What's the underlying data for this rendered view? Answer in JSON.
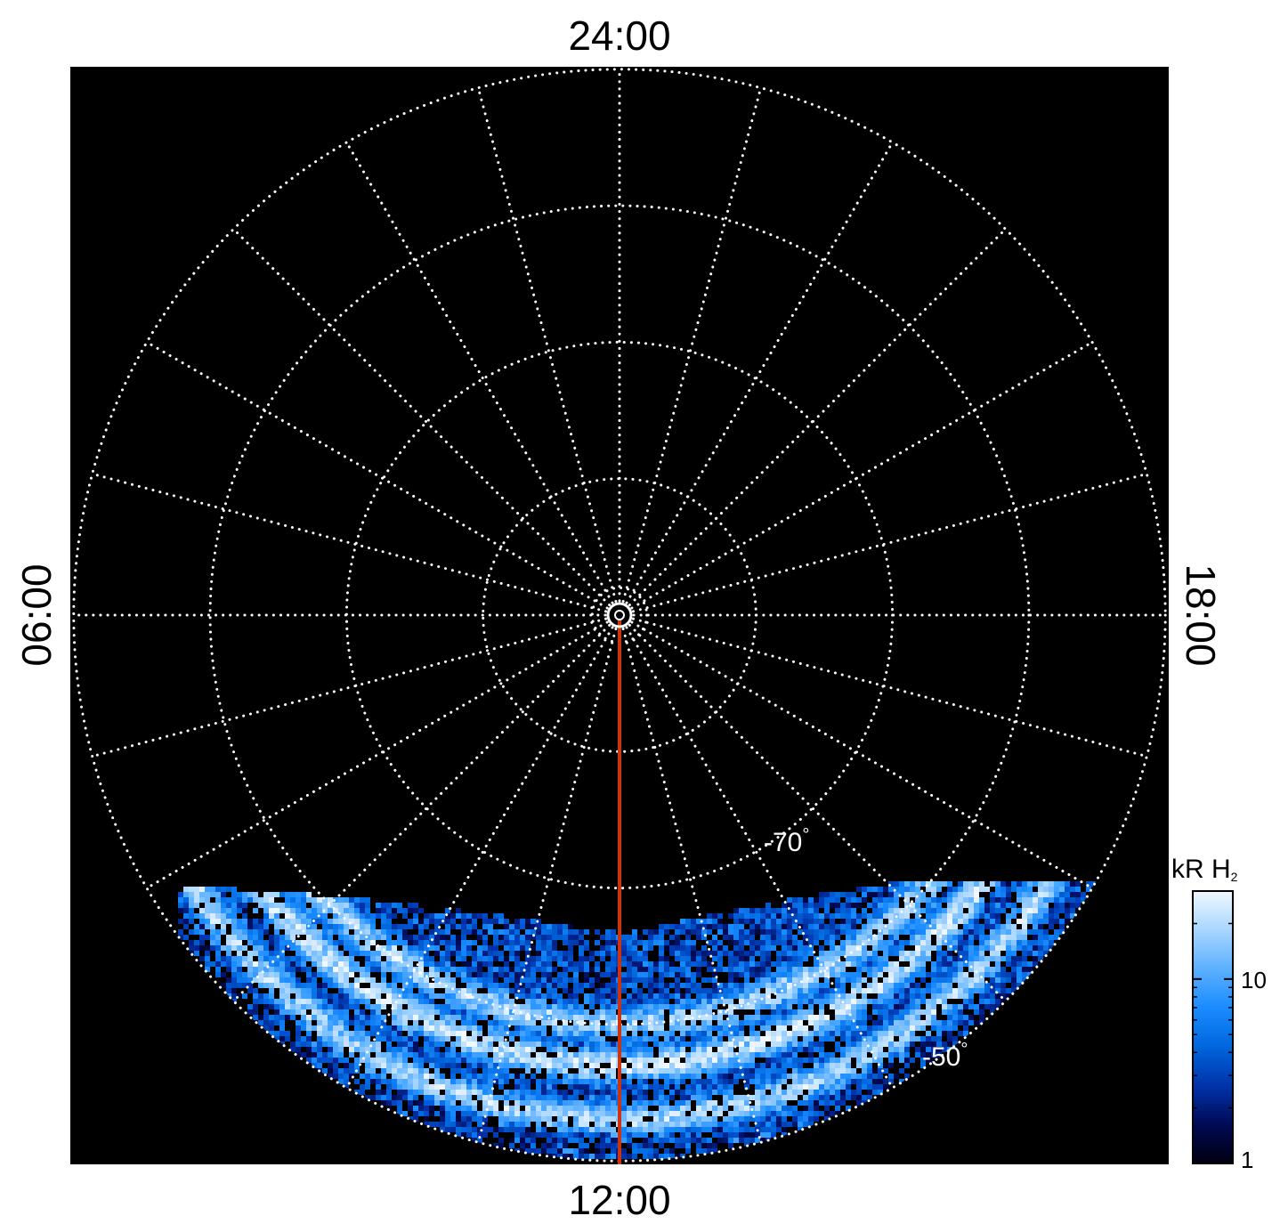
{
  "chart_data": {
    "type": "heatmap",
    "projection": "polar",
    "hemisphere": "south",
    "local_time_labels": {
      "top": "24:00",
      "bottom": "12:00",
      "left": "06:00",
      "right": "18:00"
    },
    "grid": true,
    "colatitude_rings_deg": [
      2,
      10,
      20,
      30,
      40
    ],
    "meridian_spacing_hours": 1,
    "latitude_labels": [
      {
        "text": "-70",
        "degree": "°"
      },
      {
        "text": "-50",
        "degree": "°"
      }
    ],
    "marker_line": {
      "from_local_time": "12:00",
      "color": "#cc3311"
    },
    "colorbar": {
      "label_main": "kR H",
      "label_sub": "2",
      "scale": "log",
      "ticks": [
        {
          "value": 1,
          "label": "1"
        },
        {
          "value": 10,
          "label": "10"
        }
      ],
      "range": [
        1,
        30
      ],
      "placement": "right"
    },
    "emission": {
      "region": "dayside",
      "intensity_range_kR": [
        1,
        30
      ],
      "arc_latitudes_deg": [
        -60,
        -57,
        -53
      ],
      "arc_peak_kR": 25
    }
  },
  "colors": {
    "background": "#000000",
    "grid": "#ffffff",
    "marker": "#cc3311",
    "colormap": [
      "#000010",
      "#000a55",
      "#0033aa",
      "#0066dd",
      "#1a8cff",
      "#5cb0ff",
      "#a8d6ff",
      "#f0f8ff"
    ]
  }
}
